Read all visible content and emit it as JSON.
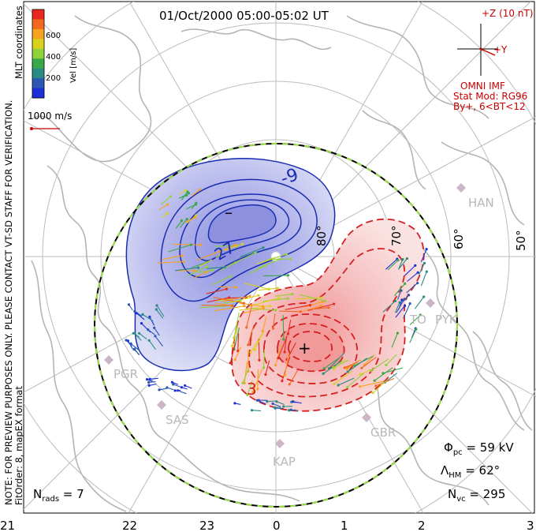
{
  "header": {
    "title": "01/Oct/2000 05:00-05:02 UT",
    "coords": "MLT coordinates",
    "side_note": "NOTE: FOR PREVIEW PURPOSES ONLY. PLEASE CONTACT VT-SD STAFF FOR VERIFICATION.",
    "fit_order": "FitOrder: 8, mapEX format"
  },
  "colorbar": {
    "unit_label": "Vel [m/s]",
    "ticks": [
      "600",
      "400",
      "200"
    ],
    "colors": [
      "#e8281e",
      "#f06a1e",
      "#f7a21e",
      "#d8d21e",
      "#8fd23a",
      "#38a84a",
      "#2a8a84",
      "#2a56b4",
      "#1c2fd8"
    ]
  },
  "reference_vector": {
    "label": "1000 m/s",
    "color": "#cc0000"
  },
  "imf": {
    "z_label": "+Z (10 nT)",
    "y_label": "+Y",
    "source": "OMNI IMF",
    "model_line1": "Stat Mod: RG96",
    "model_line2": "By+, 6<BT<12"
  },
  "map": {
    "latitudes": [
      "80°",
      "70°",
      "60°",
      "50°"
    ],
    "stations": [
      "HAN",
      "PYK",
      "TO",
      "PGR",
      "SAS",
      "GBR",
      "KAP"
    ],
    "contour_labels_neg": [
      "-9",
      "-27"
    ],
    "contour_labels_pos": [
      "3"
    ],
    "min_marker": "–",
    "max_marker": "+",
    "neg_color": "#1a2db0",
    "pos_color": "#d42020",
    "boundary_color": "#000000"
  },
  "stats": {
    "phi_pc": "Φpc = 59 kV",
    "lambda_hm": "ΛHM = 62°",
    "n_vc": "Nvc = 295",
    "n_rads": "Nrads = 7"
  },
  "mlt_axis": [
    "21",
    "22",
    "23",
    "0",
    "1",
    "2",
    "3"
  ]
}
